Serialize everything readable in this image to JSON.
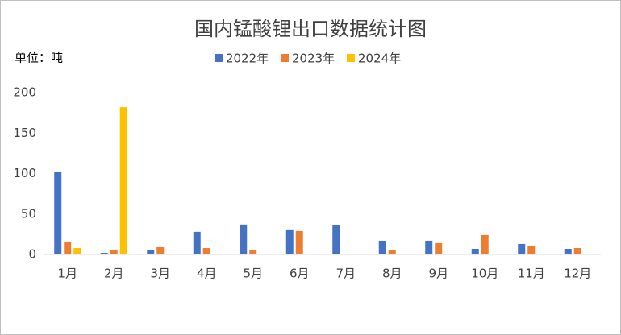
{
  "chart_data": {
    "type": "bar",
    "title": "国内锰酸锂出口数据统计图",
    "unit_label": "单位：吨",
    "categories": [
      "1月",
      "2月",
      "3月",
      "4月",
      "5月",
      "6月",
      "7月",
      "8月",
      "9月",
      "10月",
      "11月",
      "12月"
    ],
    "series": [
      {
        "name": "2022年",
        "color": "#4472c4",
        "values": [
          102,
          2,
          5,
          28,
          37,
          31,
          36,
          17,
          17,
          7,
          13,
          7
        ]
      },
      {
        "name": "2023年",
        "color": "#ed7d31",
        "values": [
          16,
          6,
          9,
          8,
          6,
          29,
          0,
          6,
          14,
          24,
          11,
          8
        ]
      },
      {
        "name": "2024年",
        "color": "#ffc000",
        "values": [
          8,
          182,
          null,
          null,
          null,
          null,
          null,
          null,
          null,
          null,
          null,
          null
        ]
      }
    ],
    "ylim": [
      0,
      200
    ],
    "yticks": [
      0,
      50,
      100,
      150,
      200
    ],
    "grid": false,
    "legend": "top"
  }
}
